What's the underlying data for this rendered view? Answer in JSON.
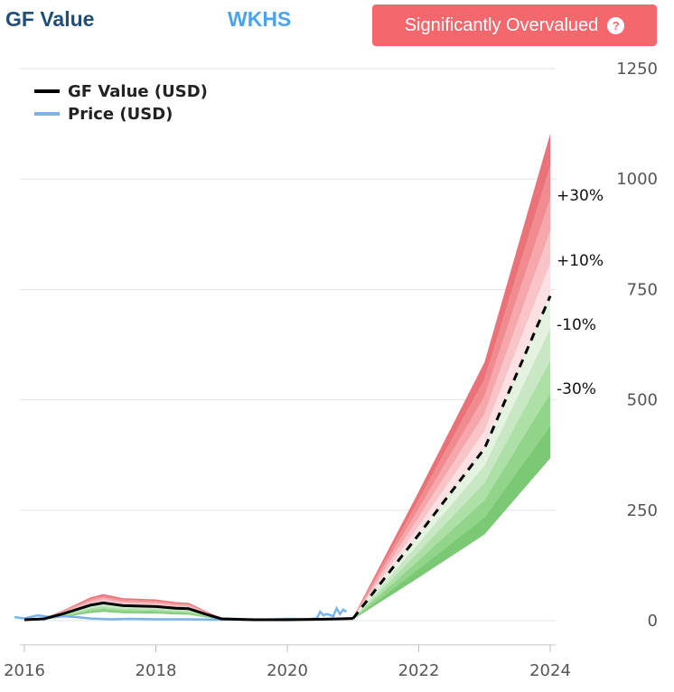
{
  "header": {
    "brand": "GF Value",
    "ticker": "WKHS",
    "badge_label": "Significantly Overvalued",
    "badge_icon": "question-icon",
    "badge_color": "#f4686d"
  },
  "chart_data": {
    "type": "area",
    "title": "",
    "xlabel": "",
    "ylabel": "",
    "x_ticks": [
      "2016",
      "2018",
      "2020",
      "2022",
      "2024"
    ],
    "y_ticks": [
      "0",
      "250",
      "500",
      "750",
      "1000",
      "1250"
    ],
    "xlim": [
      2016,
      2024
    ],
    "ylim": [
      -55,
      1250
    ],
    "grid": true,
    "legend_position": "top-left",
    "legend": [
      {
        "label": "GF Value (USD)",
        "color": "#000000"
      },
      {
        "label": "Price (USD)",
        "color": "#7ab3ea"
      }
    ],
    "band_labels": [
      "+30%",
      "+10%",
      "-10%",
      "-30%"
    ],
    "band_offsets": [
      0.5,
      0.4,
      0.3,
      0.2,
      0.1,
      -0.1,
      -0.2,
      -0.3,
      -0.4,
      -0.5
    ],
    "gf_value": {
      "x": [
        2016.0,
        2016.3,
        2016.6,
        2017.0,
        2017.2,
        2017.5,
        2018.0,
        2018.3,
        2018.5,
        2018.75,
        2019.0,
        2019.5,
        2020.0,
        2020.5,
        2021.0
      ],
      "y": [
        2,
        4,
        16,
        35,
        40,
        34,
        32,
        28,
        27,
        15,
        4,
        2,
        2,
        3,
        5
      ]
    },
    "gf_value_projected": {
      "x": [
        2021.0,
        2022.0,
        2023.0,
        2024.0
      ],
      "y": [
        5,
        195,
        390,
        735
      ]
    },
    "price": {
      "x": [
        2015.85,
        2016.0,
        2016.2,
        2016.4,
        2016.6,
        2016.8,
        2017.0,
        2017.3,
        2017.6,
        2018.0,
        2018.5,
        2019.0,
        2019.5,
        2019.8,
        2020.0,
        2020.3,
        2020.45,
        2020.5,
        2020.55,
        2020.6,
        2020.7,
        2020.75,
        2020.8,
        2020.85,
        2020.9
      ],
      "y": [
        8,
        5,
        12,
        8,
        10,
        8,
        5,
        3,
        4,
        3,
        3,
        2,
        2,
        3,
        4,
        3,
        5,
        20,
        12,
        15,
        10,
        28,
        15,
        25,
        20
      ]
    }
  }
}
